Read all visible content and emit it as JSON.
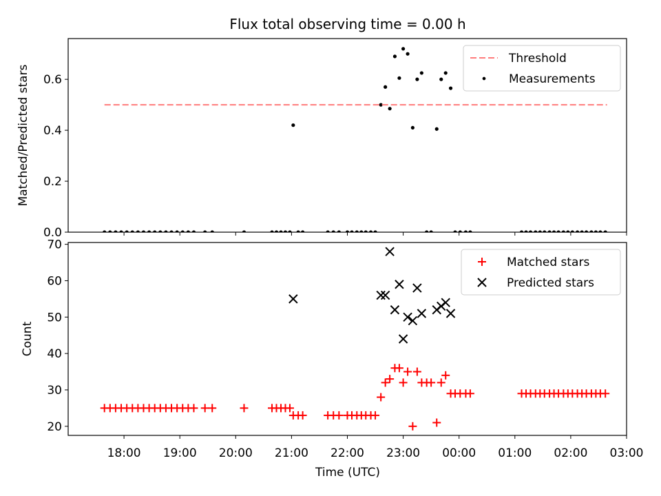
{
  "chart_data": {
    "title": "Flux total observing time = 0.00 h",
    "xlabel": "Time (UTC)",
    "x_ticks": [
      "18:00",
      "19:00",
      "20:00",
      "21:00",
      "22:00",
      "23:00",
      "00:00",
      "01:00",
      "02:00",
      "03:00"
    ],
    "x_tick_hours": [
      18,
      19,
      20,
      21,
      22,
      23,
      24,
      25,
      26,
      27
    ],
    "xlim": [
      17.0,
      27.0
    ],
    "colors": {
      "threshold": "#ff7b7b",
      "matched": "#ff0000",
      "predicted": "#000000",
      "measurement": "#000000"
    },
    "panels": [
      {
        "type": "scatter",
        "ylabel": "Matched/Predicted stars",
        "ylim": [
          0,
          0.76
        ],
        "y_ticks": [
          "0.0",
          "0.2",
          "0.4",
          "0.6"
        ],
        "y_tick_values": [
          0.0,
          0.2,
          0.4,
          0.6
        ],
        "legend": {
          "position": "top-right",
          "entries": [
            "Threshold",
            "Measurements"
          ]
        },
        "series": [
          {
            "name": "Threshold",
            "style": "dashed-line",
            "x": [
              17.65,
              26.65
            ],
            "y": [
              0.5,
              0.5
            ]
          },
          {
            "name": "Measurements",
            "style": "dot",
            "x": [
              17.65,
              17.75,
              17.85,
              17.95,
              18.05,
              18.15,
              18.25,
              18.35,
              18.45,
              18.55,
              18.65,
              18.75,
              18.85,
              18.95,
              19.05,
              19.15,
              19.25,
              19.45,
              19.58,
              20.15,
              20.65,
              20.73,
              20.81,
              20.89,
              20.97,
              21.03,
              21.12,
              21.2,
              21.65,
              21.75,
              21.85,
              22.0,
              22.08,
              22.17,
              22.25,
              22.33,
              22.42,
              22.5,
              22.6,
              22.68,
              22.76,
              22.85,
              22.93,
              23.0,
              23.08,
              23.17,
              23.25,
              23.33,
              23.42,
              23.5,
              23.6,
              23.68,
              23.76,
              23.85,
              23.93,
              24.02,
              24.12,
              24.2,
              25.12,
              25.2,
              25.28,
              25.37,
              25.45,
              25.53,
              25.62,
              25.7,
              25.78,
              25.87,
              25.95,
              26.03,
              26.12,
              26.2,
              26.28,
              26.37,
              26.45,
              26.53,
              26.62
            ],
            "y": [
              0,
              0,
              0,
              0,
              0,
              0,
              0,
              0,
              0,
              0,
              0,
              0,
              0,
              0,
              0,
              0,
              0,
              0,
              0,
              0,
              0,
              0,
              0,
              0,
              0,
              0.42,
              0,
              0,
              0,
              0,
              0,
              0,
              0,
              0,
              0,
              0,
              0,
              0,
              0.5,
              0.57,
              0.485,
              0.69,
              0.605,
              0.72,
              0.7,
              0.41,
              0.6,
              0.625,
              0,
              0,
              0.405,
              0.6,
              0.625,
              0.565,
              0,
              0,
              0,
              0,
              0,
              0,
              0,
              0,
              0,
              0,
              0,
              0,
              0,
              0,
              0,
              0,
              0,
              0,
              0,
              0,
              0,
              0,
              0
            ]
          }
        ]
      },
      {
        "type": "scatter",
        "ylabel": "Count",
        "ylim": [
          17.5,
          70.5
        ],
        "y_ticks": [
          "20",
          "30",
          "40",
          "50",
          "60",
          "70"
        ],
        "y_tick_values": [
          20,
          30,
          40,
          50,
          60,
          70
        ],
        "legend": {
          "position": "top-right",
          "entries": [
            "Matched stars",
            "Predicted stars"
          ]
        },
        "series": [
          {
            "name": "Matched stars",
            "style": "plus",
            "x": [
              17.65,
              17.75,
              17.85,
              17.95,
              18.05,
              18.15,
              18.25,
              18.35,
              18.45,
              18.55,
              18.65,
              18.75,
              18.85,
              18.95,
              19.05,
              19.15,
              19.25,
              19.45,
              19.58,
              20.15,
              20.65,
              20.73,
              20.81,
              20.89,
              20.97,
              21.03,
              21.12,
              21.2,
              21.65,
              21.75,
              21.85,
              22.0,
              22.08,
              22.17,
              22.25,
              22.33,
              22.42,
              22.5,
              22.6,
              22.68,
              22.76,
              22.85,
              22.93,
              23.0,
              23.08,
              23.17,
              23.25,
              23.33,
              23.42,
              23.5,
              23.6,
              23.68,
              23.76,
              23.85,
              23.93,
              24.02,
              24.12,
              24.2,
              25.12,
              25.2,
              25.28,
              25.37,
              25.45,
              25.53,
              25.62,
              25.7,
              25.78,
              25.87,
              25.95,
              26.03,
              26.12,
              26.2,
              26.28,
              26.37,
              26.45,
              26.53,
              26.62
            ],
            "y": [
              25,
              25,
              25,
              25,
              25,
              25,
              25,
              25,
              25,
              25,
              25,
              25,
              25,
              25,
              25,
              25,
              25,
              25,
              25,
              25,
              25,
              25,
              25,
              25,
              25,
              23,
              23,
              23,
              23,
              23,
              23,
              23,
              23,
              23,
              23,
              23,
              23,
              23,
              28,
              32,
              33,
              36,
              36,
              32,
              35,
              20,
              35,
              32,
              32,
              32,
              21,
              32,
              34,
              29,
              29,
              29,
              29,
              29,
              29,
              29,
              29,
              29,
              29,
              29,
              29,
              29,
              29,
              29,
              29,
              29,
              29,
              29,
              29,
              29,
              29,
              29,
              29
            ]
          },
          {
            "name": "Predicted stars",
            "style": "x",
            "x": [
              21.03,
              22.6,
              22.68,
              22.76,
              22.85,
              22.93,
              23.0,
              23.08,
              23.17,
              23.25,
              23.33,
              23.6,
              23.68,
              23.76,
              23.85
            ],
            "y": [
              55,
              56,
              56,
              68,
              52,
              59,
              44,
              50,
              49,
              58,
              51,
              52,
              53,
              54,
              51
            ]
          }
        ]
      }
    ]
  }
}
